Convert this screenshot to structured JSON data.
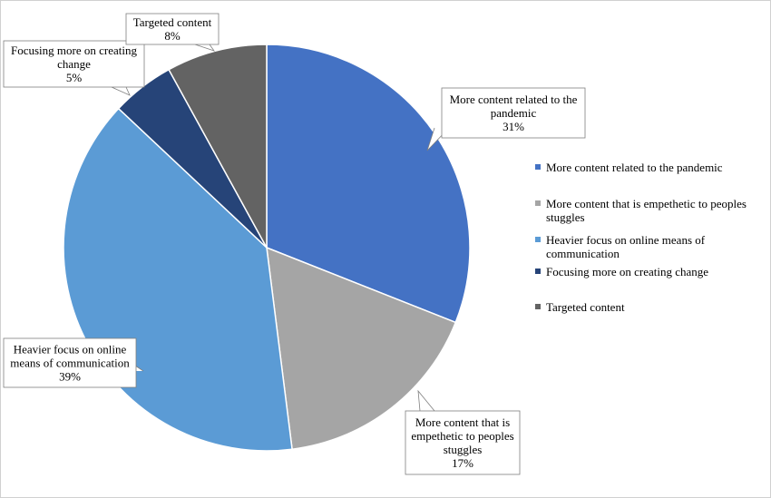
{
  "chart_data": {
    "type": "pie",
    "series": [
      {
        "values": [
          31,
          17,
          39,
          5,
          8
        ],
        "categories": [
          "More content related to the pandemic",
          "More content that is empethetic to peoples stuggles",
          "Heavier focus on online means of communication",
          "Focusing more on creating change",
          "Targeted content"
        ]
      }
    ],
    "slice_labels": [
      {
        "lines": [
          "More content related to the",
          "pandemic"
        ],
        "pct": "31%"
      },
      {
        "lines": [
          "More content that is",
          "empethetic to peoples",
          "stuggles"
        ],
        "pct": "17%"
      },
      {
        "lines": [
          "Heavier focus on online",
          "means of communication"
        ],
        "pct": "39%"
      },
      {
        "lines": [
          "Focusing more on creating",
          "change"
        ],
        "pct": "5%"
      },
      {
        "lines": [
          "Targeted content"
        ],
        "pct": "8%"
      }
    ],
    "legend": {
      "placement": "right",
      "entries": [
        {
          "lines": [
            "More content related to the pandemic"
          ]
        },
        {
          "lines": [
            "More content that is empethetic to peoples",
            "stuggles"
          ]
        },
        {
          "lines": [
            "Heavier focus on online means of",
            "communication"
          ]
        },
        {
          "lines": [
            "Focusing more on creating change"
          ]
        },
        {
          "lines": [
            "Targeted content"
          ]
        }
      ]
    },
    "colors": [
      "#4472c4",
      "#a5a5a5",
      "#5b9bd5",
      "#264478",
      "#636363"
    ],
    "start_angle": "12 o'clock",
    "direction": "clockwise"
  }
}
